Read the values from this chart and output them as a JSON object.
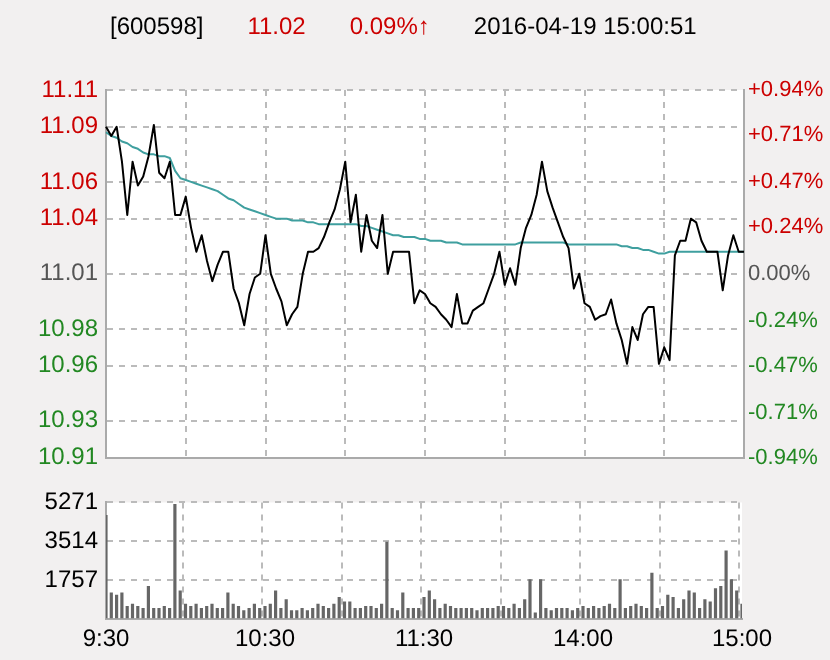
{
  "chart_data": [
    {
      "type": "line",
      "title": "[600598]",
      "annotations": [
        "11.02",
        "0.09%↑",
        "2016-04-19 15:00:51"
      ],
      "categories": [
        null,
        null,
        null,
        null,
        null,
        null,
        null,
        null,
        null,
        null,
        null,
        null,
        null,
        null,
        null,
        null,
        null,
        null,
        null,
        null,
        null,
        null,
        null,
        null,
        null,
        null,
        null,
        null,
        null,
        null,
        null,
        null,
        null,
        null,
        null,
        null,
        null,
        null,
        null,
        null,
        null,
        null,
        null,
        null,
        null,
        null,
        null,
        null,
        null,
        null,
        null,
        null,
        null,
        null,
        null,
        null,
        null,
        null,
        null,
        null,
        null,
        null,
        null,
        null,
        null,
        null,
        null,
        null,
        null,
        null,
        null,
        null,
        null,
        null,
        null,
        null,
        null,
        null,
        null,
        null,
        null,
        null,
        null,
        null,
        null,
        null,
        null,
        null,
        null,
        null,
        null,
        null,
        null,
        null,
        null,
        null,
        null,
        null,
        null,
        null,
        null,
        null,
        null,
        null,
        null,
        null,
        null,
        null,
        null,
        null,
        null,
        null,
        null,
        null,
        null,
        null,
        null,
        null,
        null,
        null,
        null
      ],
      "ylim": [
        10.91,
        11.11
      ],
      "yticks": [
        10.91,
        10.93,
        10.96,
        10.98,
        11.01,
        11.04,
        11.06,
        11.09,
        11.11
      ],
      "y2lim": [
        -0.94,
        0.94
      ],
      "y2ticks": [
        {
          "value": -0.94,
          "label": "-0.94%"
        },
        {
          "value": -0.71,
          "label": "-0.71%"
        },
        {
          "value": -0.47,
          "label": "-0.47%"
        },
        {
          "value": -0.24,
          "label": "-0.24%"
        },
        {
          "value": 0,
          "label": "0.00%"
        },
        {
          "value": 0.24,
          "label": "+0.24%"
        },
        {
          "value": 0.47,
          "label": "+0.47%"
        },
        {
          "value": 0.71,
          "label": "+0.71%"
        },
        {
          "value": 0.94,
          "label": "+0.94%"
        }
      ],
      "tick_labels": "y",
      "grid": true,
      "legend": false,
      "line_style": "solid",
      "marker": "none",
      "series": [
        {
          "color": "#000000",
          "values": [
            11.09,
            11.085,
            11.09,
            11.071,
            11.042,
            11.071,
            11.058,
            11.063,
            11.074,
            11.091,
            11.065,
            11.062,
            11.071,
            11.042,
            11.042,
            11.052,
            11.035,
            11.022,
            11.031,
            11.017,
            11.006,
            11.015,
            11.022,
            11.022,
            11.002,
            10.994,
            10.982,
            10.999,
            11.008,
            11.01,
            11.031,
            11.01,
            11.002,
            10.995,
            10.982,
            10.988,
            10.992,
            11.01,
            11.022,
            11.022,
            11.024,
            11.03,
            11.038,
            11.045,
            11.056,
            11.071,
            11.038,
            11.053,
            11.022,
            11.042,
            11.028,
            11.024,
            11.042,
            11.01,
            11.022,
            11.022,
            11.022,
            11.022,
            10.994,
            11.001,
            10.999,
            10.994,
            10.992,
            10.988,
            10.985,
            10.981,
            10.999,
            10.983,
            10.983,
            10.99,
            10.992,
            10.994,
            11.002,
            11.01,
            11.022,
            11.004,
            11.013,
            11.004,
            11.024,
            11.035,
            11.042,
            11.053,
            11.071,
            11.055,
            11.046,
            11.038,
            11.03,
            11.024,
            11.002,
            11.01,
            10.994,
            10.992,
            10.985,
            10.987,
            10.988,
            10.996,
            10.983,
            10.974,
            10.961,
            10.981,
            10.974,
            10.988,
            10.992,
            10.992,
            10.961,
            10.97,
            10.963,
            11.02,
            11.028,
            11.028,
            11.04,
            11.038,
            11.028,
            11.022,
            11.022,
            11.022,
            11.001,
            11.02,
            11.031,
            11.022,
            11.022
          ]
        },
        {
          "color": "#3f9f9f",
          "values": [
            11.087,
            11.085,
            11.084,
            11.082,
            11.081,
            11.079,
            11.078,
            11.076,
            11.075,
            11.075,
            11.074,
            11.074,
            11.073,
            11.066,
            11.062,
            11.061,
            11.06,
            11.059,
            11.058,
            11.057,
            11.056,
            11.055,
            11.053,
            11.051,
            11.05,
            11.048,
            11.046,
            11.045,
            11.044,
            11.043,
            11.042,
            11.041,
            11.04,
            11.04,
            11.04,
            11.039,
            11.039,
            11.039,
            11.038,
            11.038,
            11.037,
            11.037,
            11.037,
            11.037,
            11.037,
            11.037,
            11.037,
            11.037,
            11.036,
            11.036,
            11.035,
            11.034,
            11.033,
            11.032,
            11.031,
            11.031,
            11.03,
            11.03,
            11.03,
            11.029,
            11.029,
            11.028,
            11.028,
            11.028,
            11.027,
            11.027,
            11.027,
            11.026,
            11.026,
            11.026,
            11.026,
            11.026,
            11.026,
            11.026,
            11.026,
            11.026,
            11.026,
            11.026,
            11.027,
            11.027,
            11.027,
            11.027,
            11.027,
            11.027,
            11.027,
            11.027,
            11.027,
            11.026,
            11.026,
            11.026,
            11.026,
            11.026,
            11.026,
            11.026,
            11.026,
            11.026,
            11.026,
            11.025,
            11.025,
            11.024,
            11.024,
            11.023,
            11.023,
            11.022,
            11.021,
            11.021,
            11.022,
            11.022,
            11.022,
            11.022,
            11.022,
            11.022,
            11.022,
            11.022,
            11.022,
            11.022,
            11.022,
            11.022,
            11.022,
            11.022,
            11.022
          ]
        }
      ]
    },
    {
      "type": "bar",
      "categories": [
        "9:30",
        null,
        null,
        null,
        null,
        null,
        null,
        null,
        null,
        null,
        null,
        null,
        null,
        null,
        null,
        null,
        null,
        null,
        null,
        null,
        null,
        null,
        null,
        null,
        null,
        null,
        null,
        null,
        null,
        null,
        "10:30",
        null,
        null,
        null,
        null,
        null,
        null,
        null,
        null,
        null,
        null,
        null,
        null,
        null,
        null,
        null,
        null,
        null,
        null,
        null,
        null,
        null,
        null,
        null,
        null,
        null,
        null,
        null,
        null,
        null,
        "11:30",
        null,
        null,
        null,
        null,
        null,
        null,
        null,
        null,
        null,
        null,
        null,
        null,
        null,
        null,
        null,
        null,
        null,
        null,
        null,
        null,
        null,
        null,
        null,
        null,
        null,
        null,
        null,
        null,
        null,
        "14:00",
        null,
        null,
        null,
        null,
        null,
        null,
        null,
        null,
        null,
        null,
        null,
        null,
        null,
        null,
        null,
        null,
        null,
        null,
        null,
        null,
        null,
        null,
        null,
        null,
        null,
        null,
        null,
        null,
        null,
        "15:00"
      ],
      "ylim": [
        0,
        5271
      ],
      "yticks": [
        {
          "value": 0,
          "label": null
        },
        1757,
        3514,
        5271
      ],
      "grid": true,
      "legend": false,
      "color": "#666666",
      "values": [
        4700,
        1200,
        1100,
        1200,
        600,
        700,
        600,
        500,
        1500,
        500,
        500,
        600,
        500,
        5200,
        1300,
        700,
        600,
        700,
        500,
        600,
        700,
        500,
        500,
        1200,
        700,
        600,
        400,
        500,
        700,
        500,
        600,
        700,
        1300,
        500,
        900,
        400,
        400,
        500,
        400,
        500,
        700,
        600,
        500,
        700,
        1000,
        800,
        800,
        500,
        500,
        600,
        600,
        500,
        700,
        3500,
        500,
        400,
        1200,
        500,
        500,
        500,
        1000,
        1300,
        900,
        500,
        700,
        600,
        500,
        500,
        500,
        500,
        400,
        500,
        500,
        500,
        600,
        600,
        500,
        700,
        500,
        900,
        1800,
        300,
        1800,
        500,
        400,
        500,
        500,
        500,
        400,
        500,
        600,
        500,
        600,
        500,
        600,
        700,
        500,
        1800,
        500,
        600,
        700,
        600,
        500,
        2100,
        500,
        600,
        1100,
        1000,
        500,
        900,
        1300,
        1200,
        500,
        900,
        800,
        1400,
        1500,
        3100,
        1800,
        1300,
        700
      ]
    }
  ]
}
